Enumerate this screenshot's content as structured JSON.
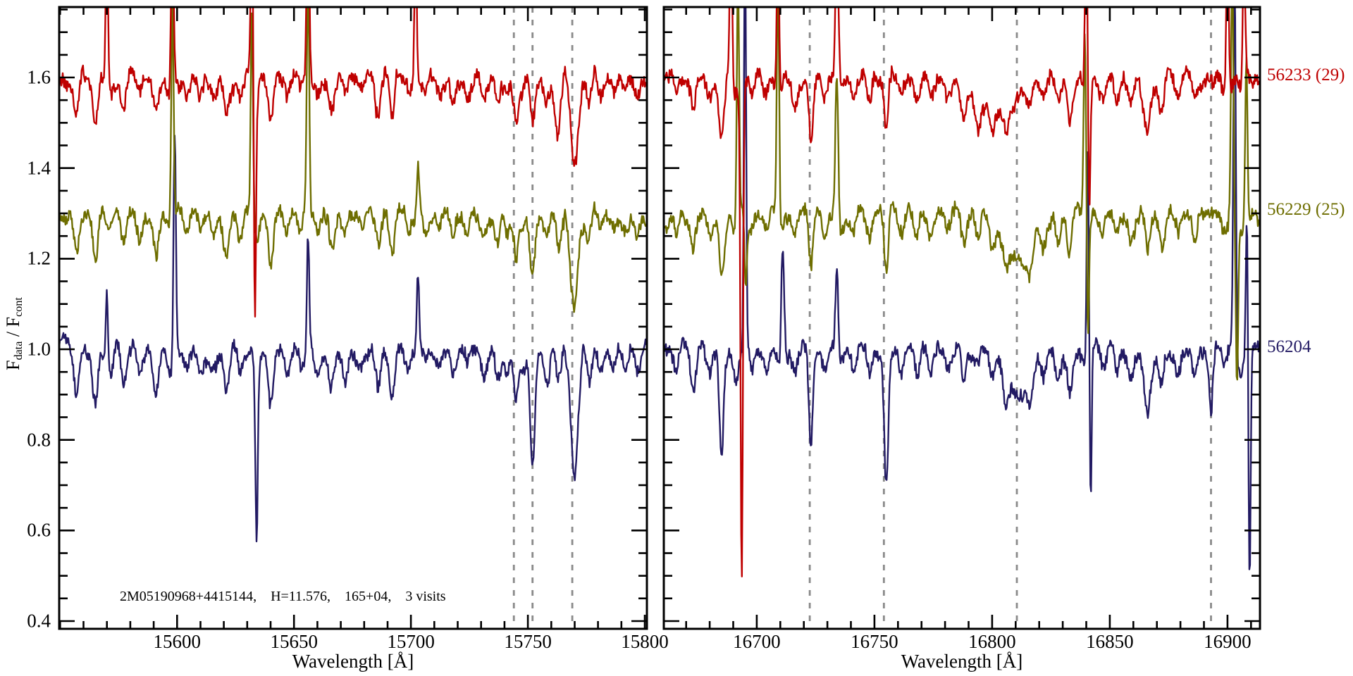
{
  "figure": {
    "ylabel": {
      "f": "F",
      "sub1": "data",
      "mid": " / F",
      "sub2": "cont"
    },
    "annotation": "2M05190968+4415144,    H=11.576,    165+04,    3 visits",
    "colors": {
      "axis": "#000000",
      "dashed": "#8a8a8a",
      "background": "#ffffff",
      "red": "#bf0000",
      "olive": "#6e6e00",
      "navy": "#221a63"
    }
  },
  "chart_data": {
    "type": "line",
    "title": "",
    "xlabel": "Wavelength [Å]",
    "ylabel": "F_data / F_cont",
    "ylim": [
      0.383,
      1.756
    ],
    "y_major_ticks": [
      0.4,
      0.6,
      0.8,
      1.0,
      1.2,
      1.4,
      1.6
    ],
    "y_tick_labels": [
      "0.4",
      "0.6",
      "0.8",
      "1.0",
      "1.2",
      "1.4",
      "1.6"
    ],
    "y_minor_step": 0.05,
    "legend_position": "right-outside",
    "grid": false,
    "series_labels": [
      {
        "text": "56233 (29)",
        "color": "#bf0000",
        "y": 1.605
      },
      {
        "text": "56229 (25)",
        "color": "#6e6e00",
        "y": 1.308
      },
      {
        "text": "56204",
        "color": "#221a63",
        "y": 1.005
      }
    ],
    "panels": [
      {
        "xlabel": "Wavelength [Å]",
        "xlim": [
          15549.6,
          15800.9
        ],
        "x_major_ticks": [
          15600,
          15650,
          15700,
          15750,
          15800
        ],
        "x_tick_labels": [
          "15600",
          "15650",
          "15700",
          "15750",
          "15800"
        ],
        "x_minor_step": 10,
        "sky_lines_dashed": [
          15744,
          15752,
          15769
        ],
        "stellar_lines": [
          [
            15557,
            0.09
          ],
          [
            15565,
            0.11
          ],
          [
            15571,
            0.05
          ],
          [
            15577,
            0.07
          ],
          [
            15584,
            0.05
          ],
          [
            15591,
            0.09
          ],
          [
            15597,
            0.06
          ],
          [
            15604,
            0.04
          ],
          [
            15610,
            0.05
          ],
          [
            15616,
            0.04
          ],
          [
            15621,
            0.1
          ],
          [
            15627,
            0.05
          ],
          [
            15634,
            0.06
          ],
          [
            15640,
            0.11
          ],
          [
            15647,
            0.05
          ],
          [
            15653,
            0.04
          ],
          [
            15660,
            0.05
          ],
          [
            15666,
            0.08
          ],
          [
            15672,
            0.05
          ],
          [
            15679,
            0.04
          ],
          [
            15686,
            0.09
          ],
          [
            15692,
            0.11
          ],
          [
            15699,
            0.05
          ],
          [
            15706,
            0.04
          ],
          [
            15712,
            0.04
          ],
          [
            15718,
            0.05
          ],
          [
            15724,
            0.04
          ],
          [
            15731,
            0.05
          ],
          [
            15737,
            0.06
          ],
          [
            15741,
            0.05
          ],
          [
            15748,
            0.05
          ],
          [
            15758,
            0.07
          ],
          [
            15763,
            0.08
          ],
          [
            15776,
            0.07
          ],
          [
            15781,
            0.05
          ],
          [
            15787,
            0.04
          ],
          [
            15792,
            0.05
          ],
          [
            15797,
            0.04
          ]
        ],
        "series": [
          {
            "label": "56233 (29)",
            "color": "#bf0000",
            "continuum": 1.6,
            "line_scale": 0.85,
            "noise": 0.013,
            "spikes": [
              [
                15570,
                0.35,
                0.5
              ],
              [
                15598,
                0.4,
                0.55
              ],
              [
                15632,
                0.4,
                0.5
              ],
              [
                15633.3,
                -0.5,
                0.45
              ],
              [
                15656,
                0.45,
                0.55
              ],
              [
                15702,
                0.3,
                0.5
              ],
              [
                15745,
                -0.09,
                1.0
              ],
              [
                15752,
                -0.09,
                1.0
              ],
              [
                15762,
                -0.07,
                1.2
              ],
              [
                15770,
                -0.19,
                1.6
              ]
            ]
          },
          {
            "label": "56229 (25)",
            "color": "#6e6e00",
            "continuum": 1.3,
            "line_scale": 0.95,
            "noise": 0.013,
            "spikes": [
              [
                15598,
                0.5,
                0.5
              ],
              [
                15632,
                0.46,
                0.5
              ],
              [
                15656,
                0.5,
                0.55
              ],
              [
                15703,
                0.1,
                0.5
              ],
              [
                15745,
                -0.1,
                1.0
              ],
              [
                15752,
                -0.13,
                1.0
              ],
              [
                15770,
                -0.21,
                1.6
              ]
            ]
          },
          {
            "label": "56204",
            "color": "#221a63",
            "continuum": 1.0,
            "line_scale": 1.0,
            "noise": 0.013,
            "spikes": [
              [
                15570,
                0.17,
                0.5
              ],
              [
                15599,
                0.5,
                0.5
              ],
              [
                15634,
                -0.36,
                0.5
              ],
              [
                15656,
                0.26,
                0.5
              ],
              [
                15703,
                0.16,
                0.5
              ],
              [
                15745,
                -0.12,
                1.0
              ],
              [
                15752,
                -0.25,
                1.0
              ],
              [
                15770,
                -0.29,
                1.6
              ]
            ]
          }
        ]
      },
      {
        "xlabel": "Wavelength [Å]",
        "xlim": [
          16660.5,
          16913.8
        ],
        "x_major_ticks": [
          16700,
          16750,
          16800,
          16850,
          16900
        ],
        "x_tick_labels": [
          "16700",
          "16750",
          "16800",
          "16850",
          "16900"
        ],
        "x_minor_step": 10,
        "sky_lines_dashed": [
          16722.5,
          16754,
          16810.5,
          16893
        ],
        "stellar_lines": [
          [
            16666,
            0.05
          ],
          [
            16673,
            0.09
          ],
          [
            16680,
            0.05
          ],
          [
            16685,
            0.14
          ],
          [
            16691,
            0.06
          ],
          [
            16698,
            0.04
          ],
          [
            16704,
            0.05
          ],
          [
            16710,
            0.04
          ],
          [
            16716,
            0.06
          ],
          [
            16729,
            0.05
          ],
          [
            16736,
            0.04
          ],
          [
            16741,
            0.05
          ],
          [
            16748,
            0.06
          ],
          [
            16761,
            0.05
          ],
          [
            16768,
            0.06
          ],
          [
            16774,
            0.05
          ],
          [
            16781,
            0.05
          ],
          [
            16788,
            0.07
          ],
          [
            16794,
            0.05
          ],
          [
            16800,
            0.07
          ],
          [
            16806,
            0.06
          ],
          [
            16816,
            0.06
          ],
          [
            16822,
            0.05
          ],
          [
            16828,
            0.06
          ],
          [
            16833,
            0.1
          ],
          [
            16840,
            0.05
          ],
          [
            16847,
            0.05
          ],
          [
            16853,
            0.05
          ],
          [
            16859,
            0.06
          ],
          [
            16866,
            0.09
          ],
          [
            16872,
            0.07
          ],
          [
            16879,
            0.05
          ],
          [
            16886,
            0.06
          ],
          [
            16899,
            0.04
          ],
          [
            16906,
            0.05
          ]
        ],
        "series": [
          {
            "label": "56233 (29)",
            "color": "#bf0000",
            "continuum": 1.6,
            "line_scale": 0.85,
            "noise": 0.013,
            "spikes": [
              [
                16689,
                0.35,
                0.5
              ],
              [
                16693.6,
                -1.1,
                0.5
              ],
              [
                16709,
                0.35,
                0.5
              ],
              [
                16723,
                -0.12,
                0.8
              ],
              [
                16734,
                0.3,
                0.6
              ],
              [
                16755,
                -0.1,
                0.9
              ],
              [
                16800,
                -0.07,
                9.0
              ],
              [
                16840,
                0.4,
                0.5
              ],
              [
                16841.3,
                -0.27,
                0.45
              ],
              [
                16866,
                -0.04,
                2.5
              ],
              [
                16900,
                0.35,
                0.5
              ],
              [
                16907,
                0.3,
                0.5
              ]
            ]
          },
          {
            "label": "56229 (25)",
            "color": "#6e6e00",
            "continuum": 1.3,
            "line_scale": 0.95,
            "noise": 0.013,
            "spikes": [
              [
                16692,
                0.55,
                0.5
              ],
              [
                16695.3,
                -0.15,
                0.5
              ],
              [
                16709,
                0.55,
                0.5
              ],
              [
                16723,
                -0.13,
                0.8
              ],
              [
                16734,
                0.33,
                0.6
              ],
              [
                16755,
                -0.15,
                0.9
              ],
              [
                16811,
                -0.1,
                6.0
              ],
              [
                16839.4,
                0.45,
                0.5
              ],
              [
                16840.7,
                -0.24,
                0.4
              ],
              [
                16902,
                0.55,
                0.5
              ],
              [
                16904,
                -0.38,
                0.5
              ],
              [
                16908,
                0.35,
                0.45
              ]
            ]
          },
          {
            "label": "56204",
            "color": "#221a63",
            "continuum": 1.0,
            "line_scale": 1.0,
            "noise": 0.013,
            "spikes": [
              [
                16685,
                -0.1,
                0.7
              ],
              [
                16695,
                0.95,
                0.45
              ],
              [
                16711,
                0.26,
                0.6
              ],
              [
                16723,
                -0.21,
                0.8
              ],
              [
                16734,
                0.18,
                0.6
              ],
              [
                16755,
                -0.29,
                0.9
              ],
              [
                16811,
                -0.1,
                5.0
              ],
              [
                16840.6,
                0.49,
                0.45
              ],
              [
                16841.9,
                -0.33,
                0.4
              ],
              [
                16866,
                -0.05,
                2.5
              ],
              [
                16893,
                -0.13,
                0.8
              ],
              [
                16903,
                0.85,
                0.5
              ],
              [
                16908.2,
                0.3,
                0.4
              ],
              [
                16909.4,
                -0.52,
                0.45
              ]
            ]
          }
        ]
      }
    ]
  }
}
